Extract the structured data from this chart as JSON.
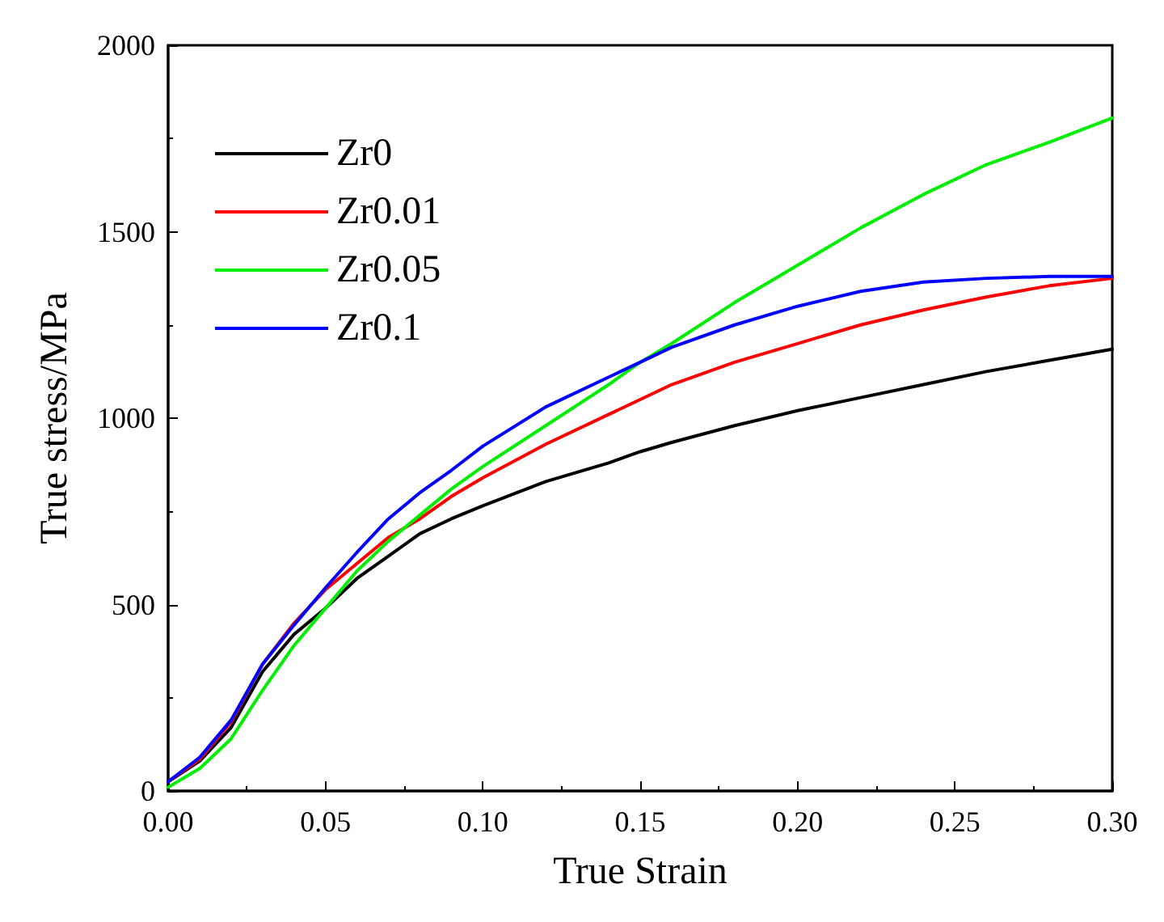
{
  "chart_data": {
    "type": "line",
    "xlabel": "True Strain",
    "ylabel": "True stress/MPa",
    "x": [
      0,
      0.01,
      0.02,
      0.03,
      0.04,
      0.05,
      0.06,
      0.07,
      0.08,
      0.09,
      0.1,
      0.12,
      0.14,
      0.15,
      0.16,
      0.18,
      0.2,
      0.22,
      0.24,
      0.26,
      0.28,
      0.3
    ],
    "series": [
      {
        "name": "Zr0",
        "color": "#000000",
        "values": [
          25,
          80,
          170,
          320,
          420,
          490,
          570,
          630,
          690,
          730,
          765,
          830,
          880,
          910,
          935,
          980,
          1020,
          1055,
          1090,
          1125,
          1155,
          1185
        ]
      },
      {
        "name": "Zr0.01",
        "color": "#ff0000",
        "values": [
          25,
          85,
          185,
          340,
          450,
          540,
          610,
          680,
          730,
          790,
          840,
          930,
          1010,
          1050,
          1090,
          1150,
          1200,
          1250,
          1290,
          1325,
          1355,
          1375
        ]
      },
      {
        "name": "Zr0.05",
        "color": "#00ee00",
        "values": [
          10,
          60,
          140,
          270,
          390,
          490,
          590,
          670,
          740,
          810,
          870,
          980,
          1090,
          1150,
          1200,
          1310,
          1410,
          1510,
          1600,
          1680,
          1740,
          1805
        ]
      },
      {
        "name": "Zr0.1",
        "color": "#0000ff",
        "values": [
          25,
          90,
          190,
          340,
          445,
          545,
          640,
          730,
          800,
          860,
          925,
          1030,
          1110,
          1150,
          1190,
          1250,
          1300,
          1340,
          1365,
          1375,
          1380,
          1380
        ]
      }
    ],
    "xlim": [
      0,
      0.3
    ],
    "xticks": [
      {
        "value": 0,
        "label": "0.00"
      },
      {
        "value": 0.05,
        "label": "0.05"
      },
      {
        "value": 0.1,
        "label": "0.10"
      },
      {
        "value": 0.15,
        "label": "0.15"
      },
      {
        "value": 0.2,
        "label": "0.20"
      },
      {
        "value": 0.25,
        "label": "0.25"
      },
      {
        "value": 0.3,
        "label": "0.30"
      }
    ],
    "ylim": [
      0,
      2000
    ],
    "yticks": [
      0,
      500,
      1000,
      1500,
      2000
    ],
    "grid": false,
    "legend": "top left",
    "marker": "none",
    "line_style": "solid"
  }
}
